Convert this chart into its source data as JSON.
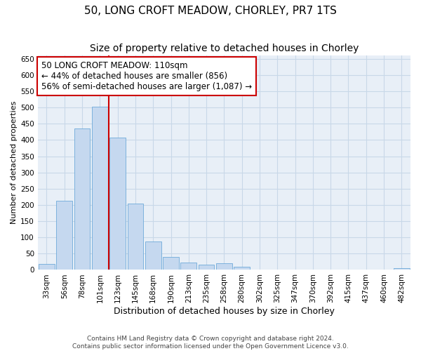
{
  "title1": "50, LONG CROFT MEADOW, CHORLEY, PR7 1TS",
  "title2": "Size of property relative to detached houses in Chorley",
  "xlabel": "Distribution of detached houses by size in Chorley",
  "ylabel": "Number of detached properties",
  "categories": [
    "33sqm",
    "56sqm",
    "78sqm",
    "101sqm",
    "123sqm",
    "145sqm",
    "168sqm",
    "190sqm",
    "213sqm",
    "235sqm",
    "258sqm",
    "280sqm",
    "302sqm",
    "325sqm",
    "347sqm",
    "370sqm",
    "392sqm",
    "415sqm",
    "437sqm",
    "460sqm",
    "482sqm"
  ],
  "values": [
    18,
    213,
    435,
    502,
    408,
    205,
    87,
    40,
    22,
    17,
    20,
    10,
    0,
    0,
    0,
    0,
    0,
    0,
    0,
    0,
    5
  ],
  "bar_color": "#c5d8ef",
  "bar_edge_color": "#5a9fd4",
  "vline_color": "#cc0000",
  "vline_x_index": 3.5,
  "annotation_lines": [
    "50 LONG CROFT MEADOW: 110sqm",
    "← 44% of detached houses are smaller (856)",
    "56% of semi-detached houses are larger (1,087) →"
  ],
  "annotation_box_edge_color": "#cc0000",
  "ylim": [
    0,
    660
  ],
  "yticks": [
    0,
    50,
    100,
    150,
    200,
    250,
    300,
    350,
    400,
    450,
    500,
    550,
    600,
    650
  ],
  "grid_color": "#c8d8e8",
  "background_color": "#e8eff7",
  "footer": "Contains HM Land Registry data © Crown copyright and database right 2024.\nContains public sector information licensed under the Open Government Licence v3.0.",
  "title1_fontsize": 11,
  "title2_fontsize": 10,
  "xlabel_fontsize": 9,
  "ylabel_fontsize": 8,
  "tick_fontsize": 7.5,
  "annotation_fontsize": 8.5,
  "footer_fontsize": 6.5
}
